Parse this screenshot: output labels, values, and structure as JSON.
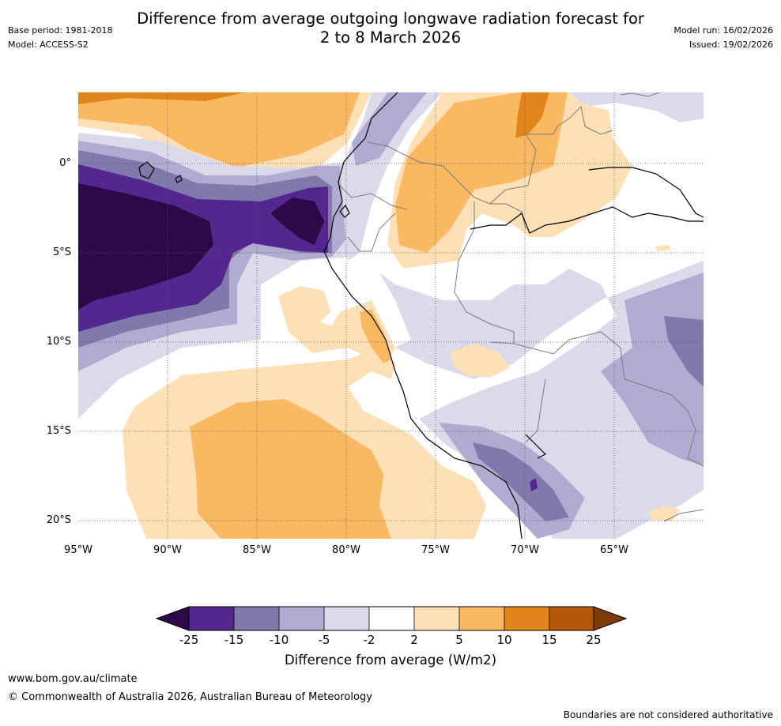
{
  "title_line1": "Difference from average outgoing longwave radiation forecast for",
  "title_line2": "2 to 8 March 2026",
  "base_period": "Base period: 1981-2018",
  "model": "Model: ACCESS-S2",
  "model_run": "Model run: 16/02/2026",
  "issued": "Issued: 19/02/2026",
  "map": {
    "lat_labels": [
      "0°",
      "5°S",
      "10°S",
      "15°S",
      "20°S"
    ],
    "lon_labels": [
      "95°W",
      "90°W",
      "85°W",
      "80°W",
      "75°W",
      "70°W",
      "65°W"
    ]
  },
  "colorbar": {
    "title": "Difference from average (W/m2)",
    "ticks": [
      "-25",
      "-15",
      "-10",
      "-5",
      "-2",
      "2",
      "5",
      "10",
      "15",
      "25"
    ],
    "colors": {
      "lt_m25": "#2c0a4a",
      "m25_m15": "#54278f",
      "m15_m10": "#807aac",
      "m10_m5": "#b1abd2",
      "m5_m2": "#dadaeb",
      "m2_p2": "#ffffff",
      "p2_p5": "#fee0b6",
      "p5_p10": "#fbb862",
      "p10_p15": "#e1841a",
      "p15_p25": "#b35806",
      "gt_p25": "#7f3b08"
    }
  },
  "footer_url": "www.bom.gov.au/climate",
  "copyright": "© Commonwealth of Australia 2026, Australian Bureau of Meteorology",
  "disclaimer": "Boundaries are not considered authoritative"
}
